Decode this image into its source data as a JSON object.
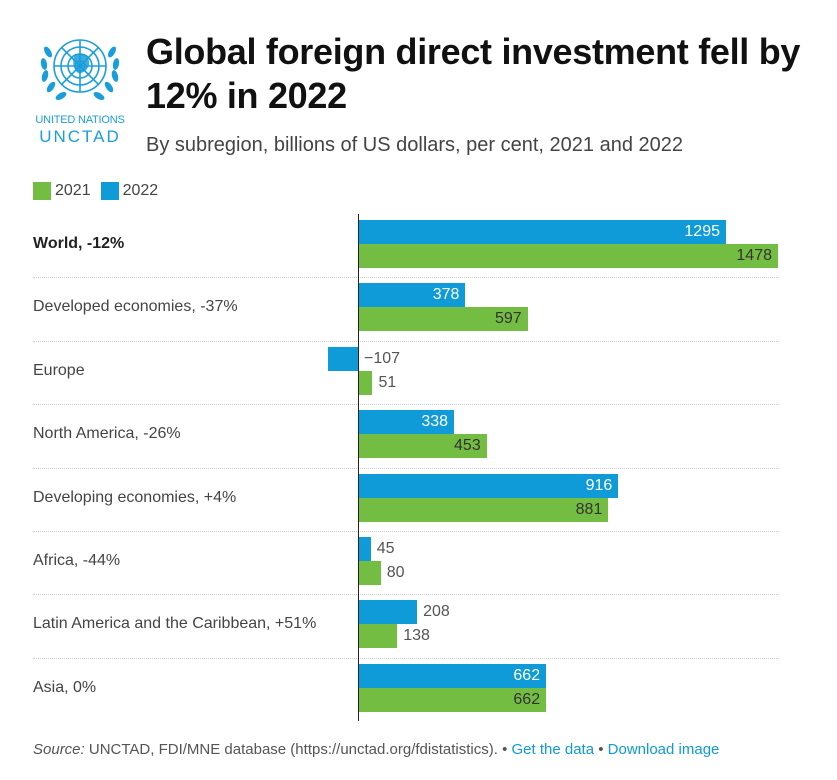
{
  "logo": {
    "org_name": "UNITED NATIONS",
    "org_abbrev": "UNCTAD",
    "icon": "un-emblem-icon"
  },
  "header": {
    "title": "Global foreign direct investment fell by 12% in 2022",
    "subtitle": "By subregion, billions of US dollars, per cent, 2021 and 2022"
  },
  "colors": {
    "series_2021": "#74bd43",
    "series_2022": "#0f9ad8"
  },
  "chart_data": {
    "type": "bar",
    "orientation": "horizontal",
    "categories": [
      "World, -12%",
      "Developed economies, -37%",
      "Europe",
      "North America, -26%",
      "Developing economies, +4%",
      "Africa, -44%",
      "Latin America and the Caribbean, +51%",
      "Asia, 0%"
    ],
    "bold_categories": [
      "World, -12%"
    ],
    "series": [
      {
        "name": "2022",
        "color": "#0f9ad8",
        "values": [
          1295,
          378,
          -107,
          338,
          916,
          45,
          208,
          662
        ],
        "labels": [
          "1295",
          "378",
          "−107",
          "338",
          "916",
          "45",
          "208",
          "662"
        ]
      },
      {
        "name": "2021",
        "color": "#74bd43",
        "values": [
          1478,
          597,
          51,
          453,
          881,
          80,
          138,
          662
        ],
        "labels": [
          "1478",
          "597",
          "51",
          "453",
          "881",
          "80",
          "138",
          "662"
        ]
      }
    ],
    "legend_order": [
      "2021",
      "2022"
    ],
    "legend_position": "top-left",
    "xlim": [
      -107,
      1478
    ],
    "grid": false
  },
  "footer": {
    "source_label": "Source:",
    "source_text": " UNCTAD, FDI/MNE database (https://unctad.org/fdistatistics).",
    "separator": " • ",
    "get_data_link": "Get the data",
    "download_link": "Download image"
  }
}
